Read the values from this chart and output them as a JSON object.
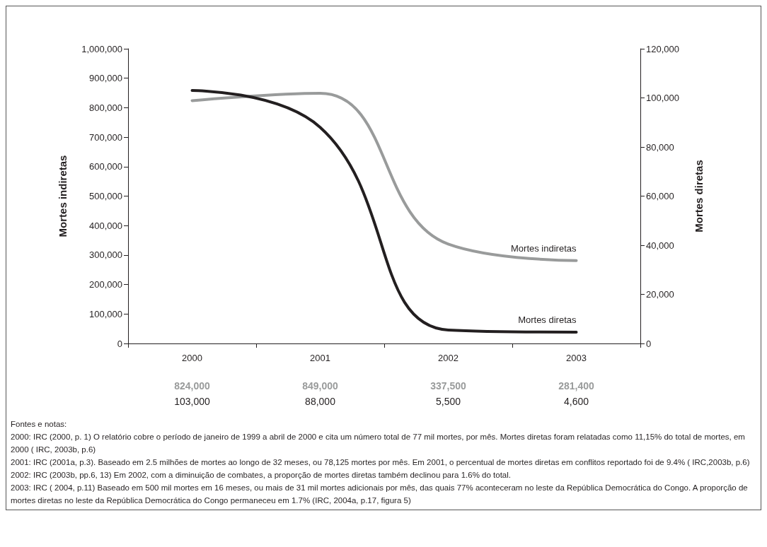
{
  "chart_data": {
    "type": "line",
    "ylabel": "Mortes indiretas",
    "y2label": "Mortes diretas",
    "categories": [
      "2000",
      "2001",
      "2002",
      "2003"
    ],
    "series": [
      {
        "name": "Mortes indiretas",
        "color": "#999b9b",
        "values": [
          824000,
          849000,
          337500,
          281400
        ],
        "value_labels": [
          "824,000",
          "849,000",
          "337,500",
          "281,400"
        ]
      },
      {
        "name": "Mortes diretas",
        "color": "#231f20",
        "axis": "y2",
        "values": [
          103000,
          88000,
          5500,
          4600
        ],
        "value_labels": [
          "103,000",
          "88,000",
          "5,500",
          "4,600"
        ]
      }
    ],
    "ylim": [
      0,
      1000000
    ],
    "yticks": [
      0,
      {
        "value": 100000,
        "label": "100,000"
      },
      {
        "value": 200000,
        "label": "200,000"
      },
      {
        "value": 300000,
        "label": "300,000"
      },
      {
        "value": 400000,
        "label": "400,000"
      },
      {
        "value": 500000,
        "label": "500,000"
      },
      {
        "value": 600000,
        "label": "600,000"
      },
      {
        "value": 700000,
        "label": "700,000"
      },
      {
        "value": 800000,
        "label": "800,000"
      },
      {
        "value": 900000,
        "label": "900,000"
      },
      {
        "value": 1000000,
        "label": "1,000,000"
      }
    ],
    "y2lim": [
      0,
      120000
    ],
    "y2ticks": [
      0,
      {
        "value": 20000,
        "label": "20,000"
      },
      {
        "value": 40000,
        "label": "40,000"
      },
      {
        "value": 60000,
        "label": "60,000"
      },
      {
        "value": 80000,
        "label": "80,000"
      },
      {
        "value": 100000,
        "label": "100,000"
      },
      {
        "value": 120000,
        "label": "120,000"
      }
    ],
    "grid": false,
    "legend": false,
    "marker": "none",
    "line_style": "solid",
    "annotations": [
      "Fontes e notas:",
      "2000: IRC (2000, p. 1)  O relatório cobre o período de janeiro de 1999 a abril de 2000 e cita um número total de 77 mil mortes, por mês. Mortes diretas foram relatadas como 11,15% do total de mortes, em 2000 ( IRC, 2003b, p.6)",
      "2001: IRC (2001a, p.3). Baseado em 2.5 milhões de mortes ao longo de 32 meses, ou 78,125 mortes por mês. Em 2001, o percentual de mortes diretas em conflitos reportado foi de 9.4% ( IRC,2003b, p.6)",
      "2002: IRC (2003b, pp.6, 13) Em 2002, com  a diminuição de combates, a proporção de mortes diretas também declinou para 1.6% do total.",
      "2003: IRC ( 2004, p.11) Baseado em 500 mil mortes em 16 meses, ou mais de 31 mil mortes adicionais por mês, das quais 77% aconteceram no leste da República Democrática do Congo. A proporção de mortes diretas no leste da República Democrática do Congo permaneceu em 1.7% (IRC, 2004a, p.17, figura 5)"
    ]
  }
}
